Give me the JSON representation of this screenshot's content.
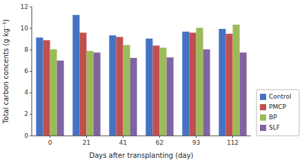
{
  "chart_data": {
    "type": "bar",
    "xlabel": "Days after transplanting (day)",
    "ylabel": "Total carbon concents (g kg⁻¹)",
    "categories": [
      "0",
      "21",
      "41",
      "62",
      "93",
      "112"
    ],
    "series": [
      {
        "name": "Control",
        "color": "#4472C4",
        "values": [
          9.15,
          11.25,
          9.35,
          9.05,
          9.7,
          9.95
        ]
      },
      {
        "name": "PMCP",
        "color": "#C0504D",
        "values": [
          8.9,
          9.6,
          9.2,
          8.4,
          9.6,
          9.5
        ]
      },
      {
        "name": "BP",
        "color": "#9BBB59",
        "values": [
          8.05,
          7.9,
          8.45,
          8.2,
          10.05,
          10.35
        ]
      },
      {
        "name": "SLF",
        "color": "#8064A2",
        "values": [
          7.0,
          7.75,
          7.25,
          7.3,
          8.05,
          7.75
        ]
      }
    ],
    "ylim": [
      0,
      12
    ],
    "yticks": [
      0,
      2,
      4,
      6,
      8,
      10,
      12
    ],
    "grid": false,
    "legend": "lower right"
  }
}
